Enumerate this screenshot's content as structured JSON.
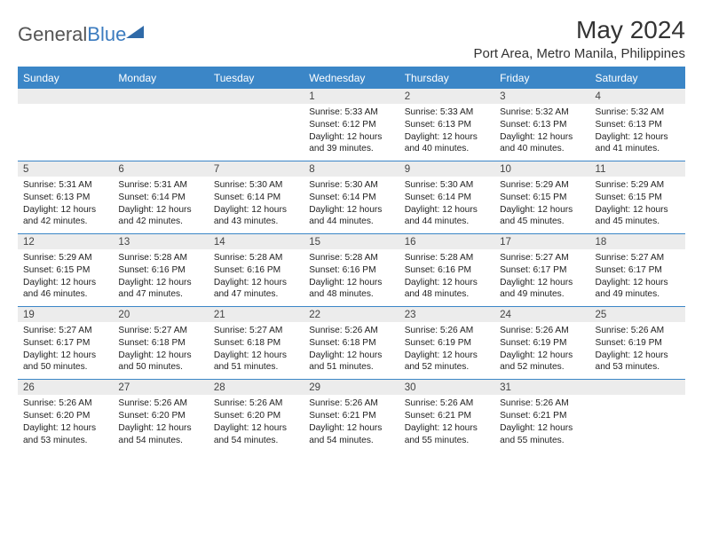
{
  "brand": {
    "general": "General",
    "blue": "Blue"
  },
  "title": "May 2024",
  "location": "Port Area, Metro Manila, Philippines",
  "colors": {
    "header_bg": "#3b86c7",
    "header_text": "#ffffff",
    "daynum_bg": "#ececec",
    "rule": "#3b86c7",
    "body_text": "#212121"
  },
  "typography": {
    "title_fontsize": 28,
    "location_fontsize": 15,
    "weekday_fontsize": 12,
    "daynum_fontsize": 11.5,
    "detail_fontsize": 10.2
  },
  "weekdays": [
    "Sunday",
    "Monday",
    "Tuesday",
    "Wednesday",
    "Thursday",
    "Friday",
    "Saturday"
  ],
  "weeks": [
    [
      null,
      null,
      null,
      {
        "n": "1",
        "sr": "5:33 AM",
        "ss": "6:12 PM",
        "dl": "12 hours and 39 minutes."
      },
      {
        "n": "2",
        "sr": "5:33 AM",
        "ss": "6:13 PM",
        "dl": "12 hours and 40 minutes."
      },
      {
        "n": "3",
        "sr": "5:32 AM",
        "ss": "6:13 PM",
        "dl": "12 hours and 40 minutes."
      },
      {
        "n": "4",
        "sr": "5:32 AM",
        "ss": "6:13 PM",
        "dl": "12 hours and 41 minutes."
      }
    ],
    [
      {
        "n": "5",
        "sr": "5:31 AM",
        "ss": "6:13 PM",
        "dl": "12 hours and 42 minutes."
      },
      {
        "n": "6",
        "sr": "5:31 AM",
        "ss": "6:14 PM",
        "dl": "12 hours and 42 minutes."
      },
      {
        "n": "7",
        "sr": "5:30 AM",
        "ss": "6:14 PM",
        "dl": "12 hours and 43 minutes."
      },
      {
        "n": "8",
        "sr": "5:30 AM",
        "ss": "6:14 PM",
        "dl": "12 hours and 44 minutes."
      },
      {
        "n": "9",
        "sr": "5:30 AM",
        "ss": "6:14 PM",
        "dl": "12 hours and 44 minutes."
      },
      {
        "n": "10",
        "sr": "5:29 AM",
        "ss": "6:15 PM",
        "dl": "12 hours and 45 minutes."
      },
      {
        "n": "11",
        "sr": "5:29 AM",
        "ss": "6:15 PM",
        "dl": "12 hours and 45 minutes."
      }
    ],
    [
      {
        "n": "12",
        "sr": "5:29 AM",
        "ss": "6:15 PM",
        "dl": "12 hours and 46 minutes."
      },
      {
        "n": "13",
        "sr": "5:28 AM",
        "ss": "6:16 PM",
        "dl": "12 hours and 47 minutes."
      },
      {
        "n": "14",
        "sr": "5:28 AM",
        "ss": "6:16 PM",
        "dl": "12 hours and 47 minutes."
      },
      {
        "n": "15",
        "sr": "5:28 AM",
        "ss": "6:16 PM",
        "dl": "12 hours and 48 minutes."
      },
      {
        "n": "16",
        "sr": "5:28 AM",
        "ss": "6:16 PM",
        "dl": "12 hours and 48 minutes."
      },
      {
        "n": "17",
        "sr": "5:27 AM",
        "ss": "6:17 PM",
        "dl": "12 hours and 49 minutes."
      },
      {
        "n": "18",
        "sr": "5:27 AM",
        "ss": "6:17 PM",
        "dl": "12 hours and 49 minutes."
      }
    ],
    [
      {
        "n": "19",
        "sr": "5:27 AM",
        "ss": "6:17 PM",
        "dl": "12 hours and 50 minutes."
      },
      {
        "n": "20",
        "sr": "5:27 AM",
        "ss": "6:18 PM",
        "dl": "12 hours and 50 minutes."
      },
      {
        "n": "21",
        "sr": "5:27 AM",
        "ss": "6:18 PM",
        "dl": "12 hours and 51 minutes."
      },
      {
        "n": "22",
        "sr": "5:26 AM",
        "ss": "6:18 PM",
        "dl": "12 hours and 51 minutes."
      },
      {
        "n": "23",
        "sr": "5:26 AM",
        "ss": "6:19 PM",
        "dl": "12 hours and 52 minutes."
      },
      {
        "n": "24",
        "sr": "5:26 AM",
        "ss": "6:19 PM",
        "dl": "12 hours and 52 minutes."
      },
      {
        "n": "25",
        "sr": "5:26 AM",
        "ss": "6:19 PM",
        "dl": "12 hours and 53 minutes."
      }
    ],
    [
      {
        "n": "26",
        "sr": "5:26 AM",
        "ss": "6:20 PM",
        "dl": "12 hours and 53 minutes."
      },
      {
        "n": "27",
        "sr": "5:26 AM",
        "ss": "6:20 PM",
        "dl": "12 hours and 54 minutes."
      },
      {
        "n": "28",
        "sr": "5:26 AM",
        "ss": "6:20 PM",
        "dl": "12 hours and 54 minutes."
      },
      {
        "n": "29",
        "sr": "5:26 AM",
        "ss": "6:21 PM",
        "dl": "12 hours and 54 minutes."
      },
      {
        "n": "30",
        "sr": "5:26 AM",
        "ss": "6:21 PM",
        "dl": "12 hours and 55 minutes."
      },
      {
        "n": "31",
        "sr": "5:26 AM",
        "ss": "6:21 PM",
        "dl": "12 hours and 55 minutes."
      },
      null
    ]
  ],
  "labels": {
    "sunrise": "Sunrise:",
    "sunset": "Sunset:",
    "daylight": "Daylight:"
  }
}
